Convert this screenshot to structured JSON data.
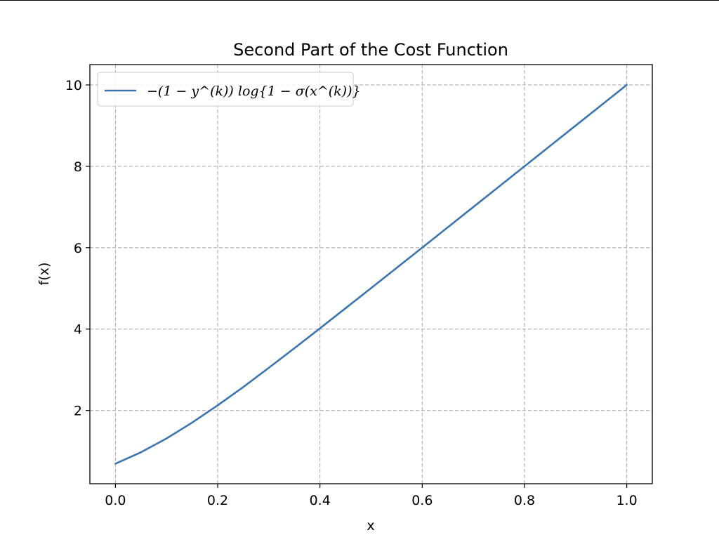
{
  "chart_data": {
    "type": "line",
    "title": "Second Part of the Cost Function",
    "xlabel": "x",
    "ylabel": "f(x)",
    "xlim": [
      -0.05,
      1.05
    ],
    "ylim": [
      0.2,
      10.5
    ],
    "xticks": [
      0.0,
      0.2,
      0.4,
      0.6,
      0.8,
      1.0
    ],
    "xtick_labels": [
      "0.0",
      "0.2",
      "0.4",
      "0.6",
      "0.8",
      "1.0"
    ],
    "yticks": [
      2,
      4,
      6,
      8,
      10
    ],
    "ytick_labels": [
      "2",
      "4",
      "6",
      "8",
      "10"
    ],
    "grid": true,
    "legend_position": "upper-left",
    "series": [
      {
        "name": "−(1 − y^(k)) log{1 − σ(x^(k))}",
        "color": "#3b75af",
        "x": [
          0.0,
          0.05,
          0.1,
          0.15,
          0.2,
          0.25,
          0.3,
          0.35,
          0.4,
          0.45,
          0.5,
          0.55,
          0.6,
          0.65,
          0.7,
          0.75,
          0.8,
          0.85,
          0.9,
          0.95,
          1.0
        ],
        "y": [
          0.693,
          0.974,
          1.313,
          1.702,
          2.127,
          2.576,
          3.049,
          3.53,
          4.018,
          4.512,
          5.007,
          5.504,
          6.002,
          6.502,
          7.001,
          7.501,
          8.0,
          8.5,
          9.0,
          9.5,
          10.0
        ]
      }
    ]
  }
}
